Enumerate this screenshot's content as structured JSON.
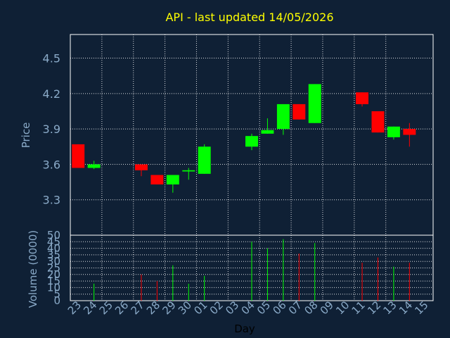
{
  "title": "API - last updated 14/05/2026",
  "colors": {
    "background": "#0f2035",
    "title": "#ffff00",
    "up": "#00ff00",
    "down": "#ff0000",
    "axis_text": "#8aaac8",
    "grid": "#ffffff"
  },
  "chart_data": [
    {
      "type": "candlestick",
      "ylabel": "Price",
      "ylim": [
        3.0,
        4.7
      ],
      "yticks": [
        "3.3",
        "3.6",
        "3.9",
        "4.2",
        "4.5"
      ],
      "ytick_values": [
        3.3,
        3.6,
        3.9,
        4.2,
        4.5
      ],
      "grid": true,
      "categories": [
        "23",
        "24",
        "25",
        "26",
        "27",
        "28",
        "29",
        "30",
        "01",
        "02",
        "03",
        "04",
        "05",
        "06",
        "07",
        "08",
        "09",
        "10",
        "11",
        "12",
        "13",
        "14",
        "15"
      ],
      "candles": [
        {
          "day": "23",
          "open": 3.77,
          "high": 3.77,
          "low": 3.57,
          "close": 3.57
        },
        {
          "day": "24",
          "open": 3.57,
          "high": 3.63,
          "low": 3.56,
          "close": 3.6
        },
        {
          "day": "27",
          "open": 3.6,
          "high": 3.6,
          "low": 3.5,
          "close": 3.55
        },
        {
          "day": "28",
          "open": 3.51,
          "high": 3.51,
          "low": 3.43,
          "close": 3.43
        },
        {
          "day": "29",
          "open": 3.43,
          "high": 3.51,
          "low": 3.36,
          "close": 3.51
        },
        {
          "day": "30",
          "open": 3.54,
          "high": 3.57,
          "low": 3.47,
          "close": 3.55
        },
        {
          "day": "01",
          "open": 3.52,
          "high": 3.77,
          "low": 3.52,
          "close": 3.75
        },
        {
          "day": "04",
          "open": 3.75,
          "high": 3.86,
          "low": 3.72,
          "close": 3.84
        },
        {
          "day": "05",
          "open": 3.86,
          "high": 3.99,
          "low": 3.86,
          "close": 3.89
        },
        {
          "day": "06",
          "open": 3.9,
          "high": 4.11,
          "low": 3.85,
          "close": 4.11
        },
        {
          "day": "07",
          "open": 4.11,
          "high": 4.11,
          "low": 3.98,
          "close": 3.98
        },
        {
          "day": "08",
          "open": 3.95,
          "high": 4.28,
          "low": 3.95,
          "close": 4.28
        },
        {
          "day": "11",
          "open": 4.21,
          "high": 4.21,
          "low": 4.09,
          "close": 4.11
        },
        {
          "day": "12",
          "open": 4.05,
          "high": 4.05,
          "low": 3.87,
          "close": 3.87
        },
        {
          "day": "13",
          "open": 3.83,
          "high": 3.92,
          "low": 3.81,
          "close": 3.92
        },
        {
          "day": "14",
          "open": 3.9,
          "high": 3.95,
          "low": 3.75,
          "close": 3.85
        }
      ]
    },
    {
      "type": "bar",
      "xlabel": "Day",
      "ylabel": "Volume (0000)",
      "ylim": [
        0,
        50
      ],
      "yticks": [
        "0",
        "5",
        "10",
        "15",
        "20",
        "25",
        "30",
        "35",
        "40",
        "45",
        "50"
      ],
      "ytick_values": [
        0,
        5,
        10,
        15,
        20,
        25,
        30,
        35,
        40,
        45,
        50
      ],
      "grid": true,
      "categories": [
        "23",
        "24",
        "25",
        "26",
        "27",
        "28",
        "29",
        "30",
        "01",
        "02",
        "03",
        "04",
        "05",
        "06",
        "07",
        "08",
        "09",
        "10",
        "11",
        "12",
        "13",
        "14",
        "15"
      ],
      "volumes": [
        {
          "day": "24",
          "value": 13,
          "direction": "up"
        },
        {
          "day": "27",
          "value": 20,
          "direction": "down"
        },
        {
          "day": "28",
          "value": 15,
          "direction": "down"
        },
        {
          "day": "29",
          "value": 27,
          "direction": "up"
        },
        {
          "day": "30",
          "value": 13,
          "direction": "up"
        },
        {
          "day": "01",
          "value": 19,
          "direction": "up"
        },
        {
          "day": "04",
          "value": 45,
          "direction": "up"
        },
        {
          "day": "05",
          "value": 40,
          "direction": "up"
        },
        {
          "day": "06",
          "value": 47,
          "direction": "up"
        },
        {
          "day": "07",
          "value": 36,
          "direction": "down"
        },
        {
          "day": "08",
          "value": 44,
          "direction": "up"
        },
        {
          "day": "11",
          "value": 29,
          "direction": "down"
        },
        {
          "day": "12",
          "value": 33,
          "direction": "down"
        },
        {
          "day": "13",
          "value": 26,
          "direction": "up"
        },
        {
          "day": "14",
          "value": 29,
          "direction": "down"
        }
      ]
    }
  ]
}
